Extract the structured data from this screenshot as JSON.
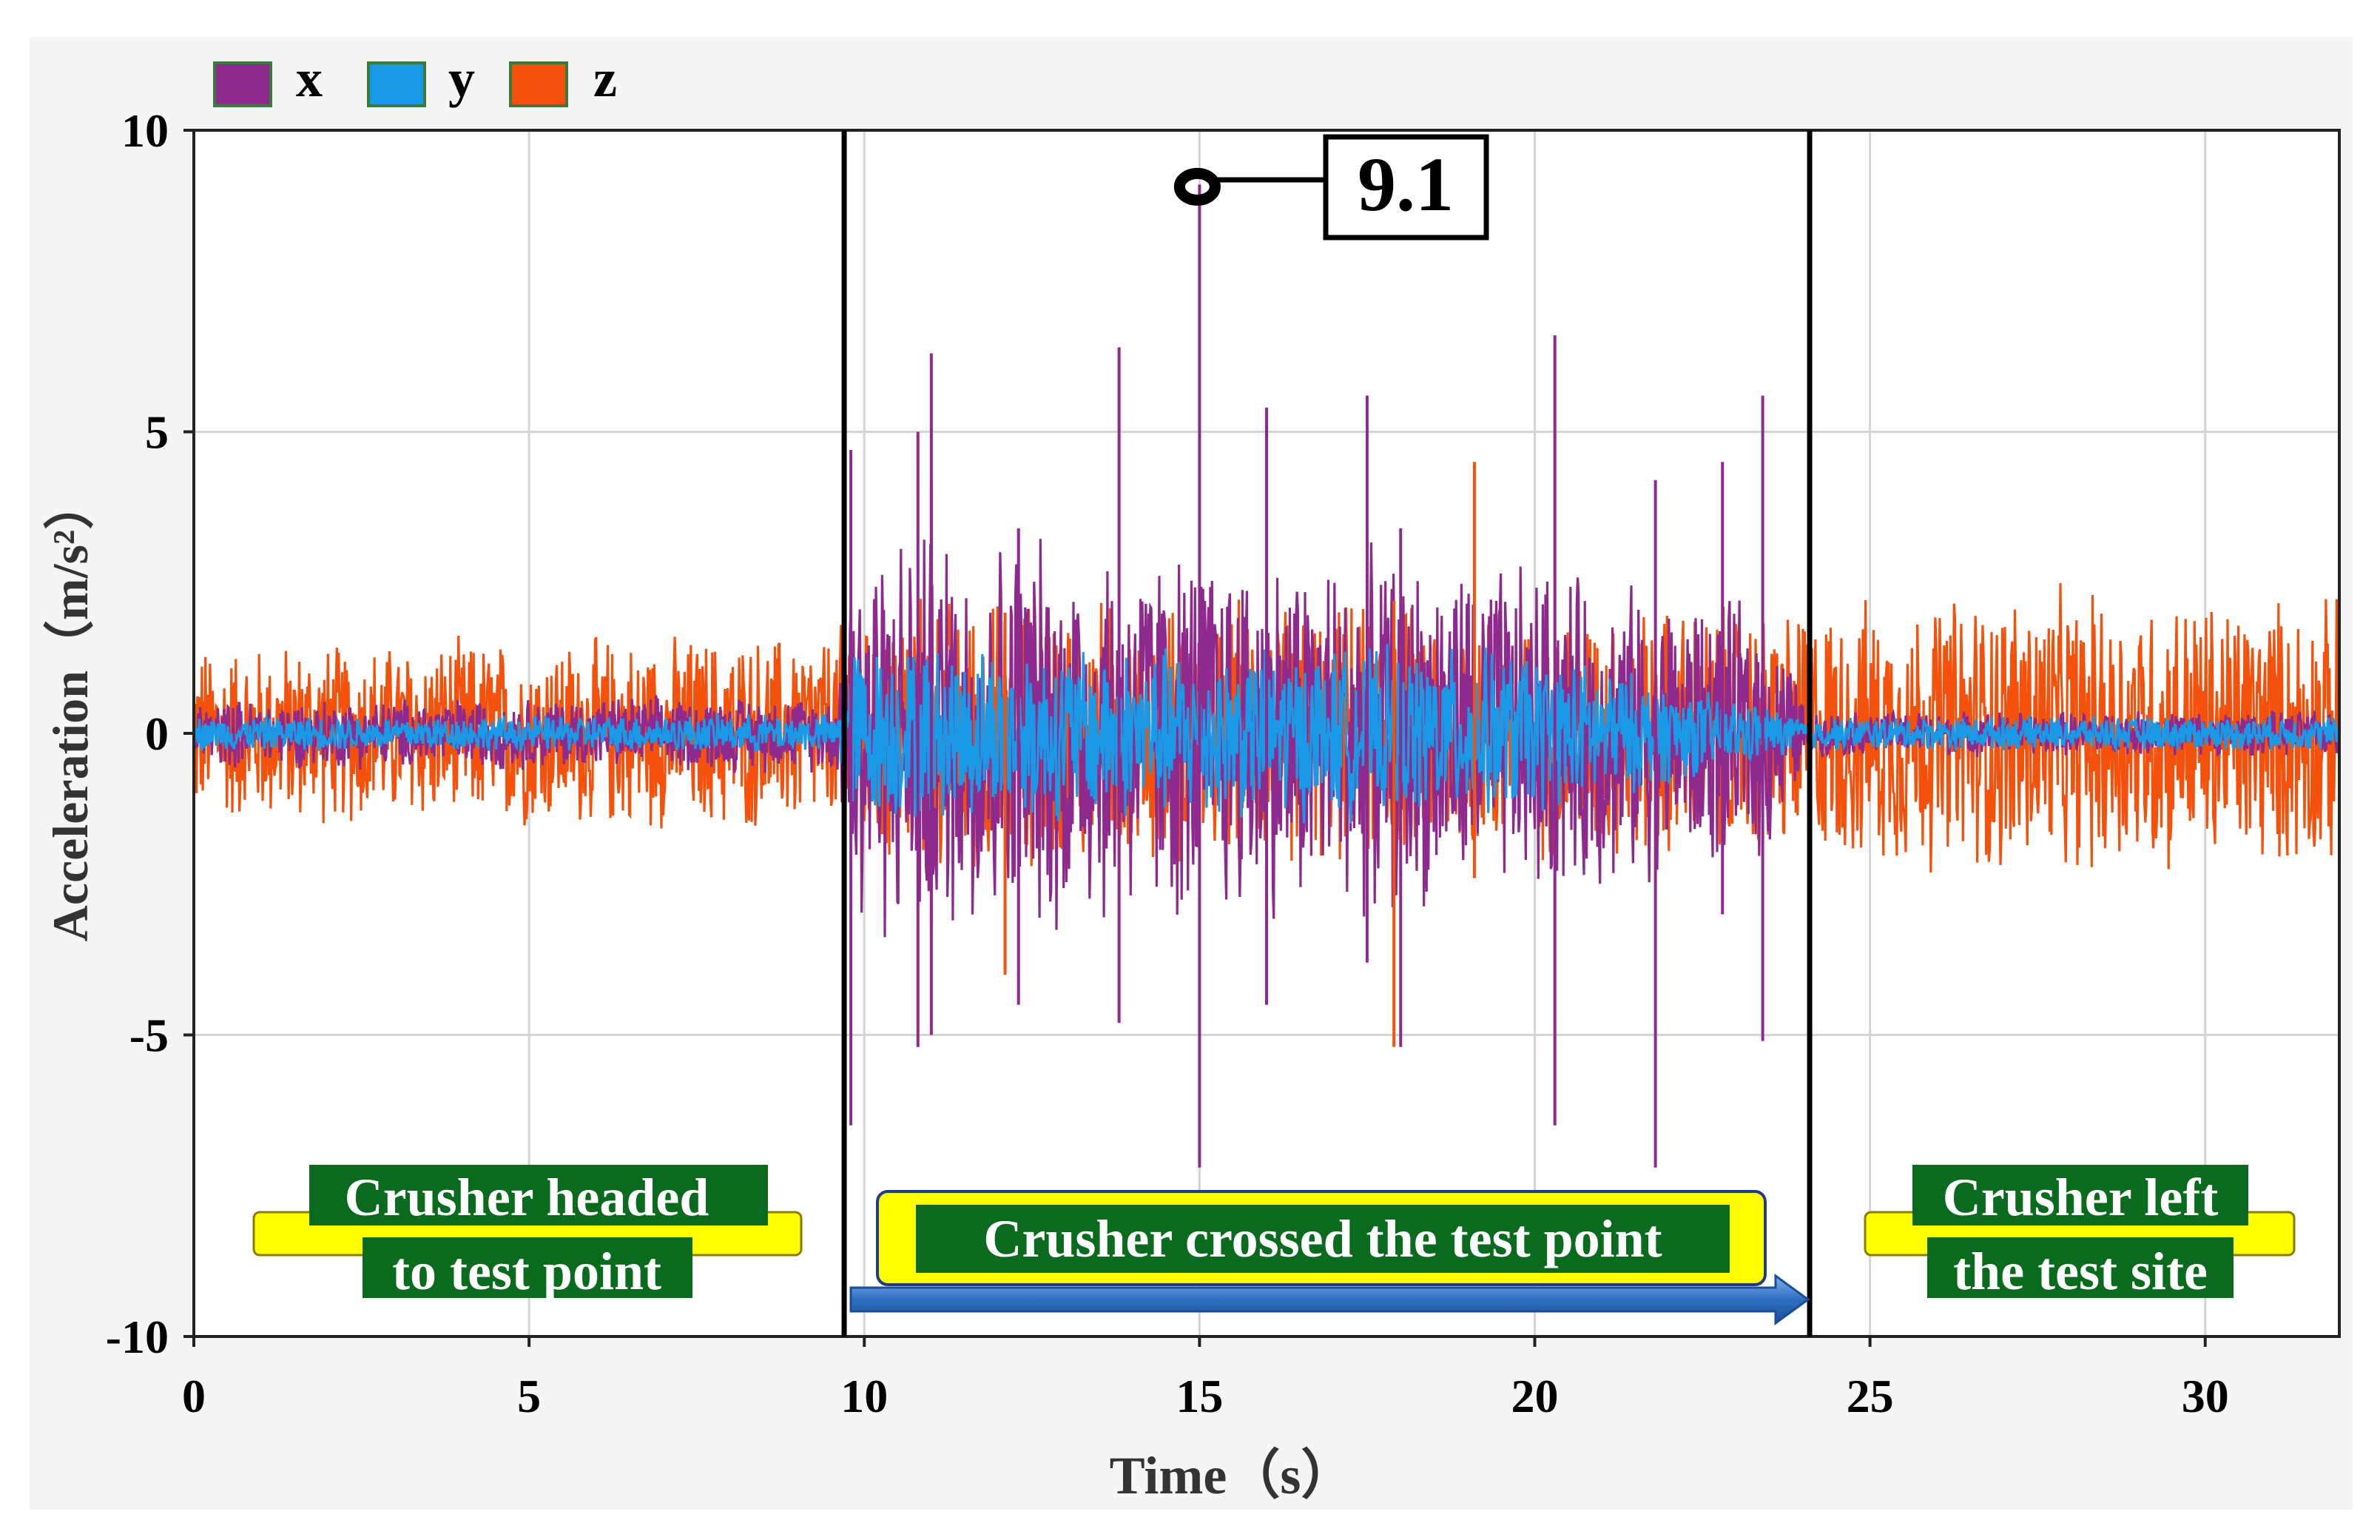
{
  "chart_data": {
    "type": "line",
    "title": "",
    "xlabel": "Time（s）",
    "ylabel": "Acceleration（m/s²）",
    "xlim": [
      0,
      32
    ],
    "ylim": [
      -10,
      10
    ],
    "x_ticks": [
      0,
      5,
      10,
      15,
      20,
      25,
      30
    ],
    "y_ticks": [
      10,
      5,
      0,
      -5,
      -10
    ],
    "x_tick_labels": [
      "0",
      "5",
      "10",
      "15",
      "20",
      "25",
      "30"
    ],
    "y_tick_labels": [
      "10",
      "5",
      "0",
      "-5",
      "-10"
    ],
    "grid": true,
    "legend": {
      "placement": "top-left",
      "entries": [
        {
          "name": "x",
          "color": "#8E2A8E"
        },
        {
          "name": "y",
          "color": "#1A9AE6"
        },
        {
          "name": "z",
          "color": "#F4520C"
        }
      ]
    },
    "series": [
      {
        "name": "x",
        "color": "#8E2A8E",
        "envelope": [
          {
            "t": 0,
            "amp": 0.6
          },
          {
            "t": 9.6,
            "amp": 0.7
          },
          {
            "t": 9.8,
            "amp": 3.8
          },
          {
            "t": 15,
            "amp": 3.4
          },
          {
            "t": 20,
            "amp": 3.0
          },
          {
            "t": 23.5,
            "amp": 2.2
          },
          {
            "t": 24.1,
            "amp": 0.4
          },
          {
            "t": 32,
            "amp": 0.4
          }
        ]
      },
      {
        "name": "y",
        "color": "#1A9AE6",
        "envelope": [
          {
            "t": 0,
            "amp": 0.3
          },
          {
            "t": 9.6,
            "amp": 0.35
          },
          {
            "t": 9.8,
            "amp": 1.6
          },
          {
            "t": 20,
            "amp": 1.5
          },
          {
            "t": 24.1,
            "amp": 0.3
          },
          {
            "t": 32,
            "amp": 0.3
          }
        ]
      },
      {
        "name": "z",
        "color": "#F4520C",
        "envelope": [
          {
            "t": 0,
            "amp": 1.6
          },
          {
            "t": 9.6,
            "amp": 1.8
          },
          {
            "t": 9.8,
            "amp": 2.5
          },
          {
            "t": 15,
            "amp": 2.4
          },
          {
            "t": 20,
            "amp": 2.3
          },
          {
            "t": 24.1,
            "amp": 2.3
          },
          {
            "t": 27,
            "amp": 2.6
          },
          {
            "t": 32,
            "amp": 2.4
          }
        ]
      }
    ],
    "spikes": [
      {
        "series": "x",
        "t": 9.8,
        "high": 4.7,
        "low": -6.5
      },
      {
        "series": "x",
        "t": 10.8,
        "high": 5.0,
        "low": -5.2
      },
      {
        "series": "x",
        "t": 11.0,
        "high": 4.2,
        "low": -5.0
      },
      {
        "series": "x",
        "t": 11.0,
        "high": 6.3,
        "low": -3.2
      },
      {
        "series": "x",
        "t": 12.3,
        "high": 3.4,
        "low": -4.5
      },
      {
        "series": "x",
        "t": 13.8,
        "high": 6.4,
        "low": -4.8
      },
      {
        "series": "x",
        "t": 15.0,
        "high": 9.1,
        "low": -7.2
      },
      {
        "series": "x",
        "t": 16.0,
        "high": 5.4,
        "low": -4.5
      },
      {
        "series": "x",
        "t": 17.5,
        "high": 5.6,
        "low": -3.8
      },
      {
        "series": "x",
        "t": 18.0,
        "high": 3.4,
        "low": -5.2
      },
      {
        "series": "x",
        "t": 20.3,
        "high": 6.6,
        "low": -6.5
      },
      {
        "series": "x",
        "t": 21.8,
        "high": 4.2,
        "low": -7.2
      },
      {
        "series": "x",
        "t": 23.4,
        "high": 5.6,
        "low": -5.1
      },
      {
        "series": "x",
        "t": 22.8,
        "high": 4.5,
        "low": -3.0
      },
      {
        "series": "z",
        "t": 19.1,
        "high": 4.5,
        "low": -2.4
      },
      {
        "series": "z",
        "t": 12.1,
        "high": 2.0,
        "low": -4.0
      },
      {
        "series": "z",
        "t": 17.9,
        "high": 2.2,
        "low": -5.2
      }
    ],
    "annotations": {
      "peak_value": {
        "t": 15,
        "y": 9.1,
        "label": "9.1"
      },
      "phase_lines_t": [
        9.7,
        24.1
      ],
      "phases": [
        {
          "line1": "Crusher headed",
          "line2": "to test point"
        },
        {
          "line1": "Crusher crossed the test point",
          "line2": ""
        },
        {
          "line1": "Crusher left",
          "line2": "the test site"
        }
      ]
    }
  }
}
